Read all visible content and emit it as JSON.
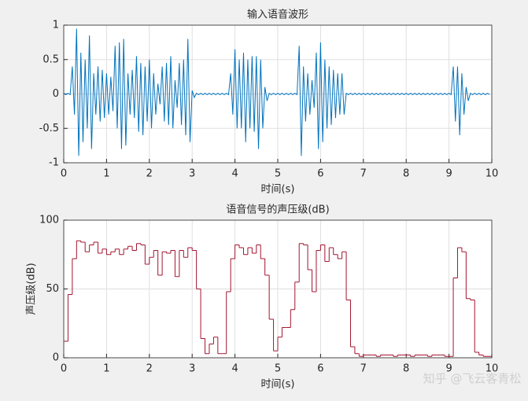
{
  "chart_data": [
    {
      "type": "line",
      "title": "输入语音波形",
      "xlabel": "时间(s)",
      "color": "#0072bd",
      "xlim": [
        0,
        10
      ],
      "ylim": [
        -1,
        1
      ],
      "xticks": [
        0,
        1,
        2,
        3,
        4,
        5,
        6,
        7,
        8,
        9,
        10
      ],
      "yticks": [
        -1,
        -0.5,
        0,
        0.5,
        1
      ],
      "grid": true,
      "x": [
        0,
        0.05,
        0.1,
        0.15,
        0.2,
        0.25,
        0.3,
        0.35,
        0.4,
        0.45,
        0.5,
        0.55,
        0.6,
        0.65,
        0.7,
        0.75,
        0.8,
        0.85,
        0.9,
        0.95,
        1,
        1.05,
        1.1,
        1.15,
        1.2,
        1.25,
        1.3,
        1.35,
        1.4,
        1.45,
        1.5,
        1.55,
        1.6,
        1.65,
        1.7,
        1.75,
        1.8,
        1.85,
        1.9,
        1.95,
        2,
        2.05,
        2.1,
        2.15,
        2.2,
        2.25,
        2.3,
        2.35,
        2.4,
        2.45,
        2.5,
        2.55,
        2.6,
        2.65,
        2.7,
        2.75,
        2.8,
        2.85,
        2.9,
        2.95,
        3,
        3.05,
        3.1,
        3.15,
        3.2,
        3.25,
        3.3,
        3.35,
        3.4,
        3.45,
        3.5,
        3.55,
        3.6,
        3.65,
        3.7,
        3.75,
        3.8,
        3.85,
        3.9,
        3.95,
        4,
        4.05,
        4.1,
        4.15,
        4.2,
        4.25,
        4.3,
        4.35,
        4.4,
        4.45,
        4.5,
        4.55,
        4.6,
        4.65,
        4.7,
        4.75,
        4.8,
        4.85,
        4.9,
        4.95,
        5,
        5.05,
        5.1,
        5.15,
        5.2,
        5.25,
        5.3,
        5.35,
        5.4,
        5.45,
        5.5,
        5.55,
        5.6,
        5.65,
        5.7,
        5.75,
        5.8,
        5.85,
        5.9,
        5.95,
        6,
        6.05,
        6.1,
        6.15,
        6.2,
        6.25,
        6.3,
        6.35,
        6.4,
        6.45,
        6.5,
        6.55,
        6.6,
        6.65,
        6.7,
        6.75,
        6.8,
        6.85,
        6.9,
        6.95,
        7,
        7.05,
        7.1,
        7.15,
        7.2,
        7.25,
        7.3,
        7.35,
        7.4,
        7.45,
        7.5,
        7.55,
        7.6,
        7.65,
        7.7,
        7.75,
        7.8,
        7.85,
        7.9,
        7.95,
        8,
        8.05,
        8.1,
        8.15,
        8.2,
        8.25,
        8.3,
        8.35,
        8.4,
        8.45,
        8.5,
        8.55,
        8.6,
        8.65,
        8.7,
        8.75,
        8.8,
        8.85,
        8.9,
        8.95,
        9,
        9.05,
        9.1,
        9.15,
        9.2,
        9.25,
        9.3,
        9.35,
        9.4,
        9.45,
        9.5,
        9.55,
        9.6,
        9.65,
        9.7,
        9.75,
        9.8,
        9.85,
        9.9,
        9.95
      ],
      "values": [
        0.01,
        -0.01,
        0.01,
        -0.01,
        0.4,
        -0.3,
        0.95,
        -0.9,
        0.6,
        -0.7,
        0.5,
        -0.5,
        0.85,
        -0.8,
        0.3,
        -0.3,
        0.4,
        -0.4,
        0.35,
        -0.35,
        0.3,
        -0.3,
        0.25,
        -0.25,
        0.7,
        -0.5,
        0.75,
        -0.8,
        0.8,
        -0.75,
        0.3,
        -0.3,
        0.35,
        -0.35,
        0.55,
        -0.55,
        0.45,
        -0.6,
        0.4,
        -0.4,
        0.5,
        -0.5,
        0.3,
        -0.3,
        0.15,
        -0.15,
        0.4,
        -0.4,
        0.45,
        -0.45,
        0.55,
        -0.5,
        0.2,
        -0.2,
        0.45,
        -0.45,
        0.5,
        -0.6,
        0.8,
        -0.7,
        0.05,
        -0.05,
        0.01,
        -0.01,
        0.01,
        -0.01,
        0.01,
        -0.01,
        0.01,
        -0.01,
        0.01,
        -0.01,
        0.01,
        -0.01,
        0.01,
        -0.01,
        0.01,
        -0.01,
        0.3,
        -0.3,
        0.65,
        -0.5,
        0.5,
        -0.5,
        0.6,
        -0.7,
        0.5,
        -0.5,
        0.55,
        -0.55,
        0.55,
        -0.8,
        0.5,
        -0.5,
        0.1,
        -0.1,
        0.01,
        -0.01,
        0.01,
        -0.01,
        0.01,
        -0.01,
        0.01,
        -0.01,
        0.01,
        -0.01,
        0.01,
        -0.01,
        0.01,
        -0.01,
        0.7,
        -0.9,
        0.4,
        -0.4,
        0.3,
        -0.3,
        0.2,
        -0.2,
        0.6,
        -0.8,
        0.75,
        -0.7,
        0.5,
        -0.5,
        0.4,
        -0.45,
        0.35,
        -0.35,
        0.3,
        -0.3,
        0.3,
        -0.3,
        0.01,
        -0.01,
        0.01,
        -0.01,
        0.01,
        -0.01,
        0.01,
        -0.01,
        0.01,
        -0.01,
        0.01,
        -0.01,
        0.01,
        -0.01,
        0.01,
        -0.01,
        0.01,
        -0.01,
        0.01,
        -0.01,
        0.01,
        -0.01,
        0.01,
        -0.01,
        0.01,
        -0.01,
        0.01,
        -0.01,
        0.01,
        -0.01,
        0.01,
        -0.01,
        0.01,
        -0.01,
        0.01,
        -0.01,
        0.01,
        -0.01,
        0.01,
        -0.01,
        0.01,
        -0.01,
        0.01,
        -0.01,
        0.01,
        -0.01,
        0.01,
        -0.01,
        0.01,
        -0.01,
        0.4,
        -0.4,
        0.4,
        -0.6,
        0.3,
        -0.3,
        0.1,
        -0.1,
        0.01,
        -0.01,
        0.01,
        -0.01,
        0.01,
        -0.01,
        0.01,
        -0.01,
        0.01,
        -0.01
      ]
    },
    {
      "type": "step",
      "title": "语音信号的声压级(dB)",
      "xlabel": "时间(s)",
      "ylabel": "声压级(dB)",
      "color": "#a2142f",
      "xlim": [
        0,
        10
      ],
      "ylim": [
        0,
        100
      ],
      "xticks": [
        0,
        1,
        2,
        3,
        4,
        5,
        6,
        7,
        8,
        9,
        10
      ],
      "yticks": [
        0,
        50,
        100
      ],
      "grid": true,
      "x": [
        0,
        0.1,
        0.2,
        0.3,
        0.4,
        0.5,
        0.6,
        0.7,
        0.8,
        0.9,
        1,
        1.1,
        1.2,
        1.3,
        1.4,
        1.5,
        1.6,
        1.7,
        1.8,
        1.9,
        2,
        2.1,
        2.2,
        2.3,
        2.4,
        2.5,
        2.6,
        2.7,
        2.8,
        2.9,
        3,
        3.1,
        3.2,
        3.3,
        3.4,
        3.5,
        3.6,
        3.7,
        3.8,
        3.9,
        4,
        4.1,
        4.2,
        4.3,
        4.4,
        4.5,
        4.6,
        4.7,
        4.8,
        4.9,
        5,
        5.1,
        5.2,
        5.3,
        5.4,
        5.5,
        5.6,
        5.7,
        5.8,
        5.9,
        6,
        6.1,
        6.2,
        6.3,
        6.4,
        6.5,
        6.6,
        6.7,
        6.8,
        6.9,
        7,
        7.1,
        7.2,
        7.3,
        7.4,
        7.5,
        7.6,
        7.7,
        7.8,
        7.9,
        8,
        8.1,
        8.2,
        8.3,
        8.4,
        8.5,
        8.6,
        8.7,
        8.8,
        8.9,
        9,
        9.1,
        9.2,
        9.3,
        9.4,
        9.5,
        9.6,
        9.7,
        9.8,
        9.9
      ],
      "values": [
        12,
        46,
        72,
        85,
        84,
        77,
        82,
        84,
        76,
        79,
        75,
        77,
        79,
        75,
        79,
        81,
        78,
        83,
        82,
        68,
        73,
        78,
        60,
        77,
        76,
        78,
        59,
        78,
        73,
        80,
        78,
        50,
        14,
        3,
        10,
        15,
        3,
        3,
        48,
        72,
        82,
        80,
        75,
        80,
        76,
        82,
        72,
        60,
        28,
        5,
        15,
        22,
        22,
        35,
        55,
        83,
        82,
        64,
        48,
        78,
        82,
        70,
        80,
        75,
        72,
        77,
        42,
        8,
        3,
        1,
        2,
        2,
        2,
        1,
        2,
        2,
        2,
        1,
        2,
        2,
        2,
        1,
        2,
        2,
        2,
        1,
        2,
        2,
        2,
        1,
        1,
        58,
        80,
        77,
        43,
        42,
        4,
        2,
        1,
        1
      ]
    }
  ],
  "watermark": "知乎 @飞云客青松"
}
